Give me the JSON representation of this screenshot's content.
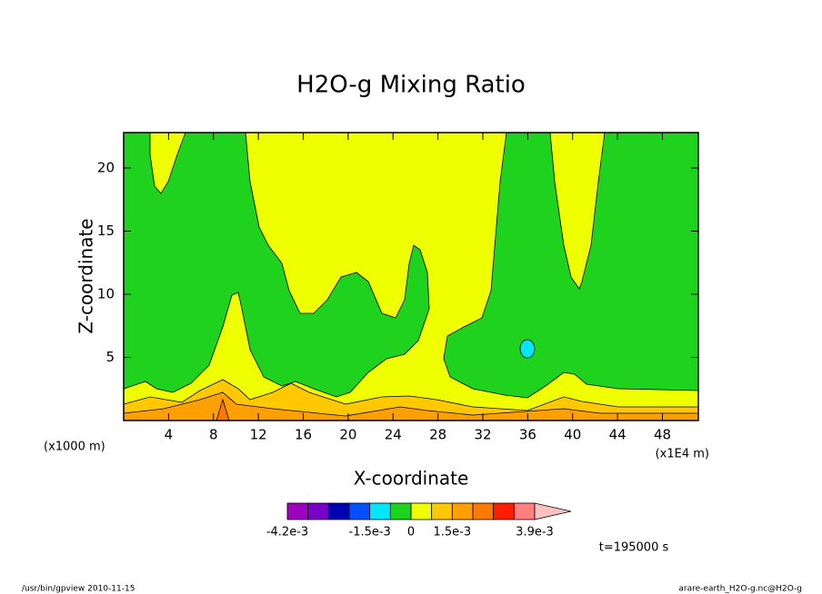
{
  "chart_data": {
    "type": "contour",
    "title": "H2O-g Mixing Ratio",
    "x_label": "X-coordinate",
    "y_label": "Z-coordinate",
    "x_units_left": "(x1000 m)",
    "x_units_right": "(x1E4 m)",
    "xlim": [
      0,
      51.2
    ],
    "xticks": [
      4,
      8,
      12,
      16,
      20,
      24,
      28,
      32,
      36,
      40,
      44,
      48
    ],
    "ylim": [
      0,
      22.8
    ],
    "yticks": [
      5,
      10,
      15,
      20
    ],
    "colorbar": {
      "colors": [
        "#a000c0",
        "#7800c8",
        "#0000b4",
        "#0050ff",
        "#00e6ff",
        "#1ed21e",
        "#f0ff00",
        "#ffc800",
        "#ffa000",
        "#ff7800",
        "#ff1e00",
        "#ff8080",
        "#ffc0c0"
      ],
      "labels": [
        "-4.2e-3",
        "-1.5e-3",
        "0",
        "1.5e-3",
        "3.9e-3"
      ]
    },
    "time_label": "t=195000 s"
  },
  "footer": {
    "left": "/usr/bin/gpview  2010-11-15",
    "right": "arare-earth_H2O-g.nc@H2O-g"
  }
}
